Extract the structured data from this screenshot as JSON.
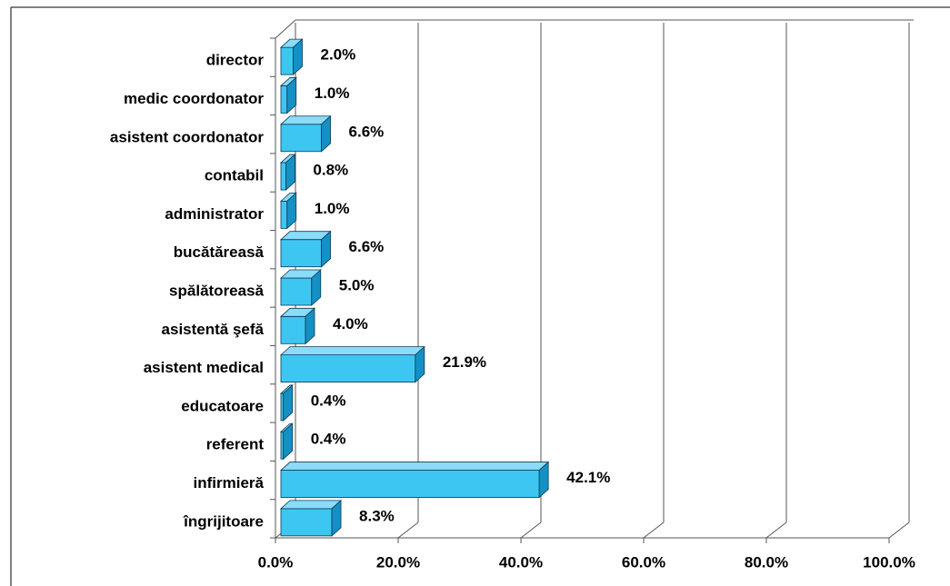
{
  "chart_data": {
    "type": "bar",
    "orientation": "horizontal",
    "three_d": true,
    "categories": [
      "director",
      "medic coordonator",
      "asistent coordonator",
      "contabil",
      "administrator",
      "bucătăreasă",
      "spălătoreasă",
      "asistentă  şefă",
      "asistent medical",
      "educatoare",
      "referent",
      "infirmieră",
      "îngrijitoare"
    ],
    "values": [
      2.0,
      1.0,
      6.6,
      0.8,
      1.0,
      6.6,
      5.0,
      4.0,
      21.9,
      0.4,
      0.4,
      42.1,
      8.3
    ],
    "value_labels": [
      "2.0%",
      "1.0%",
      "6.6%",
      "0.8%",
      "1.0%",
      "6.6%",
      "5.0%",
      "4.0%",
      "21.9%",
      "0.4%",
      "0.4%",
      "42.1%",
      "8.3%"
    ],
    "color": "#3ec6f2",
    "xlim": [
      0,
      100
    ],
    "xticks": [
      {
        "value": 0,
        "label": "0.0%"
      },
      {
        "value": 20,
        "label": "20.0%"
      },
      {
        "value": 40,
        "label": "40.0%"
      },
      {
        "value": 60,
        "label": "60.0%"
      },
      {
        "value": 80,
        "label": "80.0%"
      },
      {
        "value": 100,
        "label": "100.0%"
      }
    ],
    "grid": true
  }
}
